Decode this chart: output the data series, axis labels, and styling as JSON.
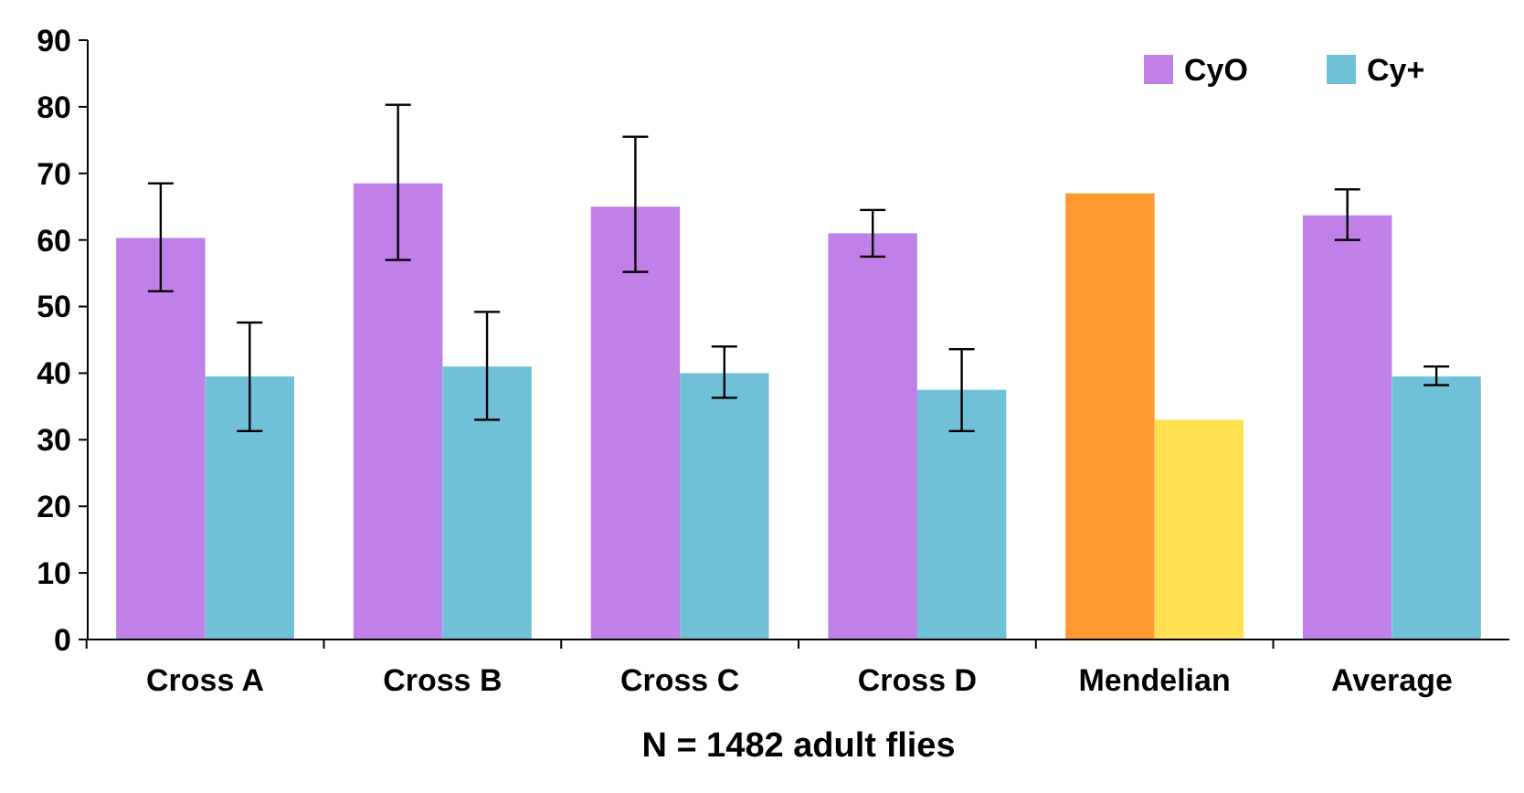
{
  "chart_data": {
    "type": "bar",
    "xlabel": "N = 1482 adult flies",
    "categories": [
      "Cross A",
      "Cross B",
      "Cross C",
      "Cross D",
      "Mendelian",
      "Average"
    ],
    "series": [
      {
        "name": "CyO",
        "color": "#c080e8",
        "colors": [
          "#c080e8",
          "#c080e8",
          "#c080e8",
          "#c080e8",
          "#ff9a30",
          "#c080e8"
        ],
        "values": [
          60.3,
          68.5,
          65,
          61,
          67,
          63.7
        ],
        "errors": [
          [
            52.3,
            68.5
          ],
          [
            57,
            80.3
          ],
          [
            55.2,
            75.5
          ],
          [
            57.5,
            64.5
          ],
          null,
          [
            60,
            67.6
          ]
        ]
      },
      {
        "name": "Cy+",
        "color": "#70c0d8",
        "colors": [
          "#70c0d8",
          "#70c0d8",
          "#70c0d8",
          "#70c0d8",
          "#ffe050",
          "#70c0d8"
        ],
        "values": [
          39.5,
          41,
          40,
          37.5,
          33,
          39.5
        ],
        "errors": [
          [
            31.3,
            47.6
          ],
          [
            33,
            49.2
          ],
          [
            36.3,
            44
          ],
          [
            31.3,
            43.6
          ],
          null,
          [
            38.2,
            41
          ]
        ]
      }
    ],
    "ylim": [
      0,
      90
    ],
    "yticks": [
      0,
      10,
      20,
      30,
      40,
      50,
      60,
      70,
      80,
      90
    ],
    "grid": false,
    "legend": "top right"
  }
}
